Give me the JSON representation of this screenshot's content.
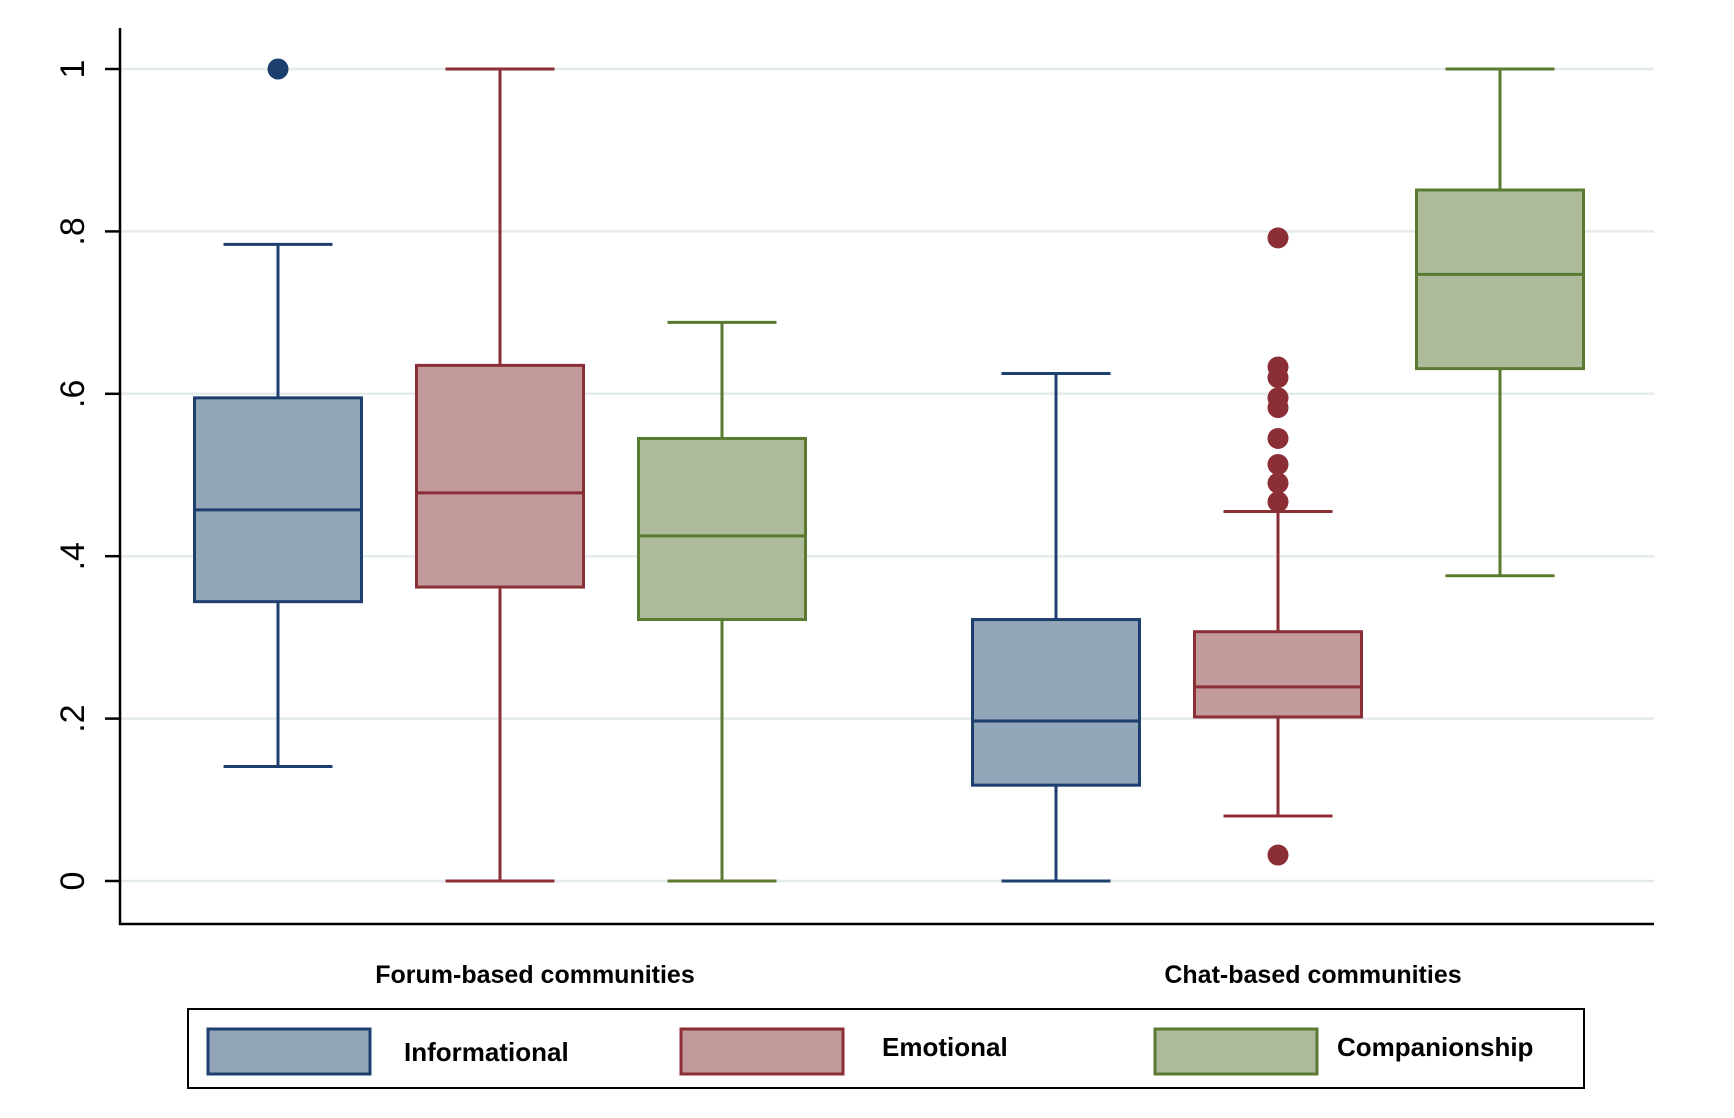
{
  "chart_data": {
    "type": "box",
    "ylim": [
      0,
      1
    ],
    "yticks": [
      {
        "value": 0,
        "label": "0"
      },
      {
        "value": 0.2,
        "label": ".2"
      },
      {
        "value": 0.4,
        "label": ".4"
      },
      {
        "value": 0.6,
        "label": ".6"
      },
      {
        "value": 0.8,
        "label": ".8"
      },
      {
        "value": 1,
        "label": "1"
      }
    ],
    "grid": true,
    "legend_position": "bottom",
    "groups": [
      "Forum-based communities",
      "Chat-based communities"
    ],
    "series": [
      {
        "name": "Informational",
        "color": "#93a5b9",
        "edge": "#1c3f6e"
      },
      {
        "name": "Emotional",
        "color": "#c39a9c",
        "edge": "#8b2e35"
      },
      {
        "name": "Companionship",
        "color": "#aebb9b",
        "edge": "#5a7a32"
      }
    ],
    "boxes": [
      {
        "group": 0,
        "series": 0,
        "whisker_low": 0.141,
        "q1": 0.344,
        "median": 0.457,
        "q3": 0.595,
        "whisker_high": 0.784,
        "outliers": [
          1.0
        ]
      },
      {
        "group": 0,
        "series": 1,
        "whisker_low": 0.0,
        "q1": 0.362,
        "median": 0.478,
        "q3": 0.635,
        "whisker_high": 1.0,
        "outliers": []
      },
      {
        "group": 0,
        "series": 2,
        "whisker_low": 0.0,
        "q1": 0.322,
        "median": 0.425,
        "q3": 0.545,
        "whisker_high": 0.688,
        "outliers": []
      },
      {
        "group": 1,
        "series": 0,
        "whisker_low": 0.0,
        "q1": 0.118,
        "median": 0.197,
        "q3": 0.322,
        "whisker_high": 0.625,
        "outliers": []
      },
      {
        "group": 1,
        "series": 1,
        "whisker_low": 0.08,
        "q1": 0.202,
        "median": 0.239,
        "q3": 0.307,
        "whisker_high": 0.455,
        "outliers": [
          0.032,
          0.467,
          0.49,
          0.513,
          0.545,
          0.583,
          0.595,
          0.62,
          0.633,
          0.792
        ]
      },
      {
        "group": 1,
        "series": 2,
        "whisker_low": 0.376,
        "q1": 0.631,
        "median": 0.747,
        "q3": 0.851,
        "whisker_high": 1.0,
        "outliers": []
      }
    ]
  }
}
